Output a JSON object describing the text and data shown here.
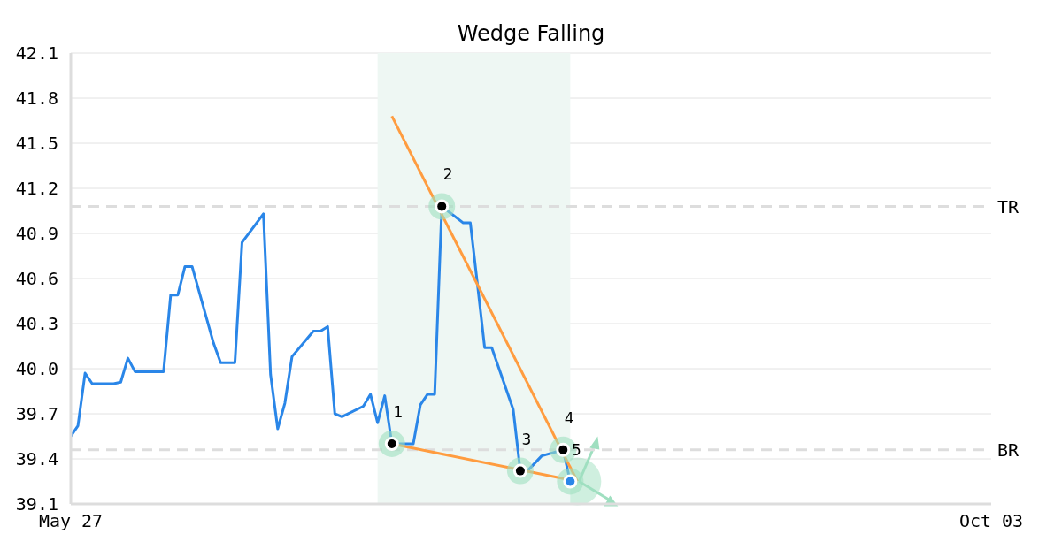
{
  "chart_data": {
    "type": "line",
    "title": "Wedge Falling",
    "x": [
      "--05-27",
      "--05-28",
      "--05-29",
      "--05-30",
      "--06-02",
      "--06-03",
      "--06-04",
      "--06-05",
      "--06-06",
      "--06-09",
      "--06-10",
      "--06-11",
      "--06-12",
      "--06-13",
      "--06-16",
      "--06-17",
      "--06-18",
      "--06-19",
      "--06-20",
      "--06-23",
      "--06-24",
      "--06-25",
      "--06-26",
      "--06-27",
      "--06-30",
      "--07-01",
      "--07-02",
      "--07-03",
      "--07-04",
      "--07-07",
      "--07-08",
      "--07-09",
      "--07-10",
      "--07-11",
      "--07-14",
      "--07-15",
      "--07-16",
      "--07-17",
      "--07-18",
      "--07-21",
      "--07-22",
      "--07-23",
      "--07-24",
      "--07-25",
      "--07-28",
      "--07-29",
      "--07-30",
      "--07-31",
      "--08-01",
      "--08-04",
      "--08-05"
    ],
    "xlim": [
      "--05-27",
      "--10-03"
    ],
    "xticks": [
      {
        "value": "--05-27",
        "label": "May 27"
      },
      {
        "value": "--10-03",
        "label": "Oct 03"
      }
    ],
    "ylim": [
      39.1,
      42.1
    ],
    "yticks": [
      39.1,
      39.4,
      39.7,
      {
        "value": 40,
        "label": "40.0"
      },
      40.3,
      40.6,
      40.9,
      41.2,
      41.5,
      41.8,
      42.1
    ],
    "grid": "y",
    "line_style": "solid",
    "series": [
      {
        "color": "#2a86e8",
        "marker": "none",
        "values": [
          39.55,
          39.62,
          39.97,
          39.9,
          39.9,
          39.91,
          40.07,
          39.98,
          39.98,
          39.98,
          40.49,
          40.49,
          40.68,
          40.68,
          40.17,
          40.04,
          40.04,
          40.04,
          40.84,
          41.03,
          39.96,
          39.6,
          39.77,
          40.08,
          40.25,
          40.25,
          40.28,
          39.7,
          39.68,
          39.75,
          39.83,
          39.64,
          39.82,
          39.5,
          39.5,
          39.76,
          39.83,
          39.83,
          41.08,
          40.97,
          40.97,
          40.56,
          40.14,
          40.14,
          39.73,
          39.32,
          39.32,
          39.37,
          39.42,
          39.46,
          39.25
        ]
      },
      {
        "type": "line",
        "color": "#ff9c3f",
        "x": [
          "--07-11",
          "--08-06"
        ],
        "values": [
          41.68,
          39.25
        ]
      },
      {
        "type": "line",
        "color": "#ff9c3f",
        "x": [
          "--07-11",
          "--08-06"
        ],
        "values": [
          39.5,
          39.25
        ]
      },
      {
        "type": "scatter",
        "color": "#000000",
        "marker": "circle",
        "x": [
          "--07-11",
          "--07-18",
          "--07-29",
          "--08-04",
          "--08-05"
        ],
        "values": [
          39.5,
          41.08,
          39.32,
          39.46,
          39.25
        ],
        "colors": [
          "#000000",
          "#000000",
          "#000000",
          "#000000",
          "#2a86e8"
        ]
      }
    ],
    "bands": [
      {
        "axis": "x",
        "from": "--07-09",
        "to": "--08-05",
        "color": "#eef7f3"
      }
    ],
    "ref_lines": [
      {
        "axis": "y",
        "value": 41.08,
        "label": "TR",
        "color": "#dddddd",
        "line_style": "dashed"
      },
      {
        "axis": "y",
        "value": 39.46,
        "label": "BR",
        "color": "#dddddd",
        "line_style": "dashed"
      }
    ],
    "annotations": [
      {
        "text": "1",
        "x": "--07-11",
        "y": 39.5
      },
      {
        "text": "2",
        "x": "--07-18",
        "y": 41.08
      },
      {
        "text": "3",
        "x": "--07-29",
        "y": 39.32
      },
      {
        "text": "4",
        "x": "--08-04",
        "y": 39.46
      },
      {
        "text": "5",
        "x": "--08-05",
        "y": 39.25
      }
    ]
  }
}
